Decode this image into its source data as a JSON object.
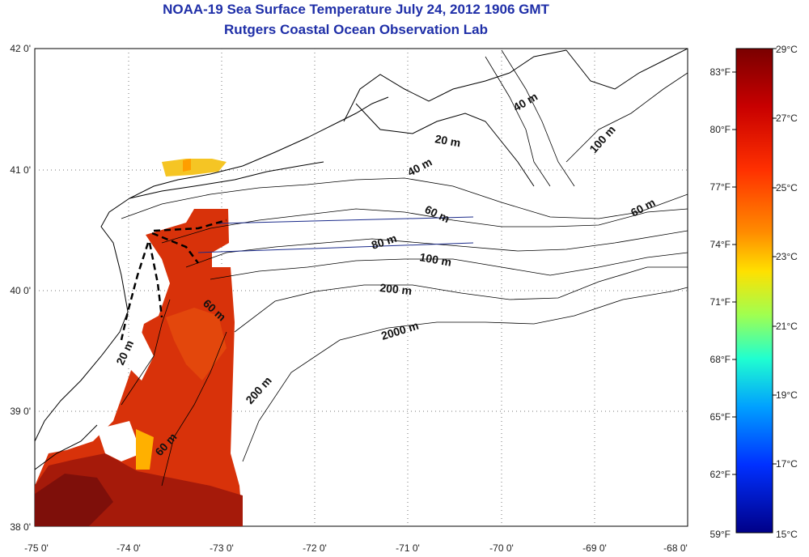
{
  "title": {
    "line1": "NOAA-19 Sea Surface Temperature July 24, 2012 1906 GMT",
    "line2": "Rutgers Coastal Ocean Observation Lab"
  },
  "map": {
    "lat_labels": [
      "42 0'",
      "41 0'",
      "40 0'",
      "39 0'",
      "38 0'"
    ],
    "lon_labels": [
      "-75 0'",
      "-74 0'",
      "-73 0'",
      "-72 0'",
      "-71 0'",
      "-70 0'",
      "-69 0'",
      "-68 0'"
    ],
    "contour_labels": [
      "40 m",
      "100 m",
      "20 m",
      "40 m",
      "60 m",
      "60 m",
      "80 m",
      "100 m",
      "200 m",
      "60 m",
      "2000 m",
      "20 m",
      "200 m",
      "60 m"
    ]
  },
  "colorbar": {
    "fahrenheit": [
      "83°F",
      "80°F",
      "77°F",
      "74°F",
      "71°F",
      "68°F",
      "65°F",
      "62°F",
      "59°F"
    ],
    "celsius": [
      "29°C",
      "27°C",
      "25°C",
      "23°C",
      "21°C",
      "19°C",
      "17°C",
      "15°C"
    ],
    "colors": [
      "#7a0000",
      "#c80000",
      "#ff3000",
      "#ff8c00",
      "#ffe000",
      "#a0ff50",
      "#20ffd0",
      "#00a0ff",
      "#0030ff",
      "#000088"
    ]
  }
}
